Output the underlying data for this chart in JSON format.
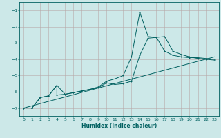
{
  "xlabel": "Humidex (Indice chaleur)",
  "bg_color": "#cce8e8",
  "grid_color": "#b8a8a8",
  "line_color": "#006060",
  "xlim": [
    -0.5,
    23.5
  ],
  "ylim": [
    -7.5,
    -0.5
  ],
  "xticks": [
    0,
    1,
    2,
    3,
    4,
    5,
    6,
    7,
    8,
    9,
    10,
    11,
    12,
    13,
    14,
    15,
    16,
    17,
    18,
    19,
    20,
    21,
    22,
    23
  ],
  "yticks": [
    -7,
    -6,
    -5,
    -4,
    -3,
    -2,
    -1
  ],
  "series1_x": [
    0,
    1,
    2,
    3,
    4,
    4,
    5,
    6,
    7,
    8,
    9,
    10,
    11,
    12,
    13,
    14,
    15,
    16,
    17,
    18,
    19,
    20,
    21,
    22,
    23
  ],
  "series1_y": [
    -7.0,
    -7.0,
    -6.35,
    -6.25,
    -5.6,
    -6.2,
    -6.15,
    -6.05,
    -5.95,
    -5.85,
    -5.75,
    -5.45,
    -5.55,
    -5.5,
    -5.35,
    -3.75,
    -2.7,
    -2.65,
    -3.5,
    -3.75,
    -3.85,
    -3.9,
    -3.9,
    -3.95,
    -4.0
  ],
  "series2_x": [
    0,
    1,
    2,
    3,
    4,
    5,
    6,
    7,
    8,
    9,
    10,
    11,
    12,
    13,
    14,
    15,
    16,
    17,
    18,
    19,
    20,
    21,
    22,
    23
  ],
  "series2_y": [
    -7.0,
    -7.0,
    -6.35,
    -6.25,
    -5.6,
    -6.15,
    -6.05,
    -5.95,
    -5.85,
    -5.7,
    -5.35,
    -5.2,
    -5.0,
    -3.85,
    -1.1,
    -2.6,
    -2.65,
    -2.6,
    -3.5,
    -3.7,
    -3.85,
    -3.95,
    -4.0,
    -4.05
  ],
  "series3_x": [
    0,
    23
  ],
  "series3_y": [
    -7.0,
    -3.85
  ]
}
